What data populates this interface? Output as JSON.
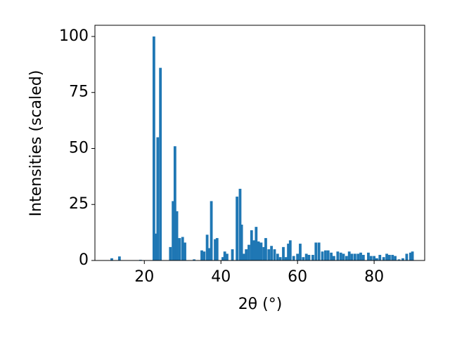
{
  "chart_data": {
    "type": "bar",
    "xlabel": "2θ (°)",
    "ylabel": "Intensities (scaled)",
    "color": "#1f77b4",
    "x": [
      11.5,
      13.5,
      19,
      22.5,
      23.0,
      23.5,
      24.2,
      26.8,
      27.5,
      28.0,
      28.5,
      29.2,
      30,
      30.6,
      33,
      35,
      35.6,
      36.4,
      37,
      37.5,
      38.5,
      39,
      40.5,
      41,
      41.6,
      43,
      44.2,
      45,
      45.4,
      46,
      46.6,
      47.3,
      48,
      48.6,
      49.2,
      49.8,
      50.5,
      51.2,
      51.7,
      52.5,
      53.2,
      54,
      54.8,
      55.5,
      56.3,
      57,
      57.6,
      58.1,
      59,
      60,
      60.7,
      61.5,
      62.3,
      63,
      64,
      64.8,
      65.6,
      66.5,
      67.3,
      68,
      68.8,
      69.5,
      70.5,
      71.3,
      72,
      72.8,
      73.5,
      74.2,
      75,
      75.8,
      76.5,
      77.2,
      78.5,
      79.2,
      80,
      80.7,
      81.5,
      82.5,
      83.3,
      84,
      84.8,
      85.5,
      86.5,
      87.5,
      88.5,
      89.5,
      90
    ],
    "values": [
      1,
      1.8,
      0.3,
      100,
      12,
      55,
      86,
      6,
      26.5,
      51,
      22,
      10,
      10.5,
      8,
      0.5,
      4.5,
      4,
      11.5,
      5.5,
      26.5,
      9.5,
      10,
      1.5,
      4,
      3,
      5,
      28.5,
      32,
      16,
      3,
      5,
      7,
      13.5,
      9,
      15,
      8.5,
      8,
      6,
      10,
      5,
      6.5,
      5,
      3,
      1.5,
      6,
      1.5,
      7.5,
      9,
      2,
      3,
      7.5,
      1.5,
      3,
      2.5,
      2.5,
      8,
      8,
      4,
      4.5,
      4.5,
      3.5,
      2,
      4,
      3.5,
      3,
      2,
      4,
      3,
      3,
      3,
      3.5,
      2.5,
      3.5,
      2,
      2,
      1,
      2.5,
      1.5,
      3,
      2.5,
      2.5,
      2,
      0.5,
      1,
      3,
      3.5,
      4
    ],
    "xlim": [
      7.1,
      93.2
    ],
    "ylim": [
      0,
      105
    ],
    "xticks": [
      20,
      40,
      60,
      80
    ],
    "yticks": [
      0,
      25,
      50,
      75,
      100
    ]
  }
}
